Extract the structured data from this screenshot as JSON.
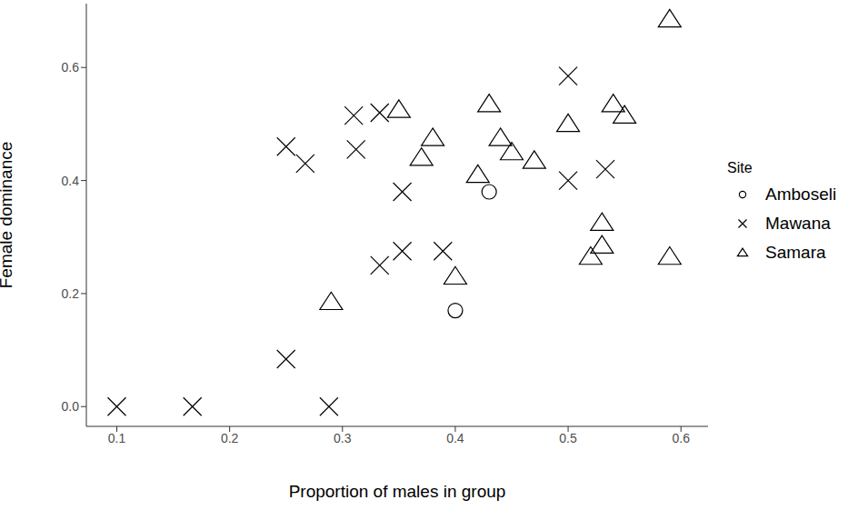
{
  "chart_data": {
    "type": "scatter",
    "x_label": "Proportion of males in group",
    "y_label": "Female dominance",
    "legend_title": "Site",
    "legend": "right",
    "xlim": [
      0.073,
      0.624
    ],
    "xticks": [
      0.1,
      0.2,
      0.3,
      0.4,
      0.5,
      0.6
    ],
    "ylim": [
      -0.035,
      0.713
    ],
    "yticks": [
      {
        "value": 0,
        "label": "0.0"
      },
      0.2,
      0.4,
      0.6
    ],
    "grid": false,
    "series": [
      {
        "name": "Amboseli",
        "marker": "circle",
        "color": "#000000",
        "x": [
          0.43,
          0.4
        ],
        "values": [
          0.38,
          0.17
        ]
      },
      {
        "name": "Mawana",
        "marker": "cross",
        "color": "#000000",
        "x": [
          0.1,
          0.167,
          0.288,
          0.25,
          0.25,
          0.267,
          0.31,
          0.312,
          0.333,
          0.333,
          0.353,
          0.353,
          0.389,
          0.5,
          0.5,
          0.533
        ],
        "values": [
          0,
          0,
          0,
          0.084,
          0.46,
          0.43,
          0.515,
          0.455,
          0.52,
          0.25,
          0.38,
          0.275,
          0.275,
          0.585,
          0.4,
          0.42
        ]
      },
      {
        "name": "Samara",
        "marker": "triangle",
        "color": "#000000",
        "x": [
          0.29,
          0.35,
          0.38,
          0.37,
          0.4,
          0.42,
          0.43,
          0.44,
          0.45,
          0.47,
          0.5,
          0.53,
          0.53,
          0.52,
          0.54,
          0.55,
          0.59,
          0.59
        ],
        "values": [
          0.185,
          0.525,
          0.475,
          0.44,
          0.23,
          0.41,
          0.535,
          0.475,
          0.45,
          0.435,
          0.5,
          0.325,
          0.285,
          0.265,
          0.535,
          0.515,
          0.685,
          0.265
        ]
      }
    ]
  }
}
